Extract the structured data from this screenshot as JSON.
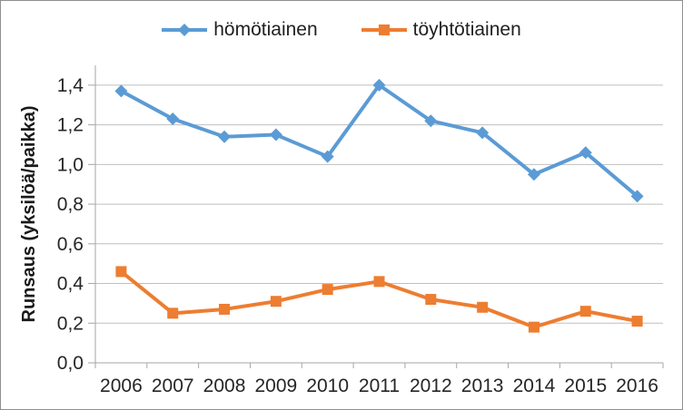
{
  "chart_data": {
    "type": "line",
    "title": "",
    "xlabel": "",
    "ylabel": "Runsaus (yksilöä/paikka)",
    "categories": [
      "2006",
      "2007",
      "2008",
      "2009",
      "2010",
      "2011",
      "2012",
      "2013",
      "2014",
      "2015",
      "2016"
    ],
    "series": [
      {
        "name": "hömötiainen",
        "color": "#5B9BD5",
        "marker": "diamond",
        "values": [
          1.37,
          1.23,
          1.14,
          1.15,
          1.04,
          1.4,
          1.22,
          1.16,
          0.95,
          1.06,
          0.84
        ]
      },
      {
        "name": "töyhtötiainen",
        "color": "#ED7D31",
        "marker": "square",
        "values": [
          0.46,
          0.25,
          0.27,
          0.31,
          0.37,
          0.41,
          0.32,
          0.28,
          0.18,
          0.26,
          0.21
        ]
      }
    ],
    "ylim": [
      0,
      1.5
    ],
    "y_ticks": [
      {
        "value": 0.0,
        "label": "0,0"
      },
      {
        "value": 0.2,
        "label": "0,2"
      },
      {
        "value": 0.4,
        "label": "0,4"
      },
      {
        "value": 0.6,
        "label": "0,6"
      },
      {
        "value": 0.8,
        "label": "0,8"
      },
      {
        "value": 1.0,
        "label": "1,0"
      },
      {
        "value": 1.2,
        "label": "1,2"
      },
      {
        "value": 1.4,
        "label": "1,4"
      }
    ],
    "grid": true,
    "legend_position": "top-center",
    "colors": {
      "gridline": "#BFBFBF",
      "axis": "#A6A6A6",
      "tick_label": "#262626",
      "frame_border": "#8f8f8f",
      "background": "#ffffff"
    }
  }
}
